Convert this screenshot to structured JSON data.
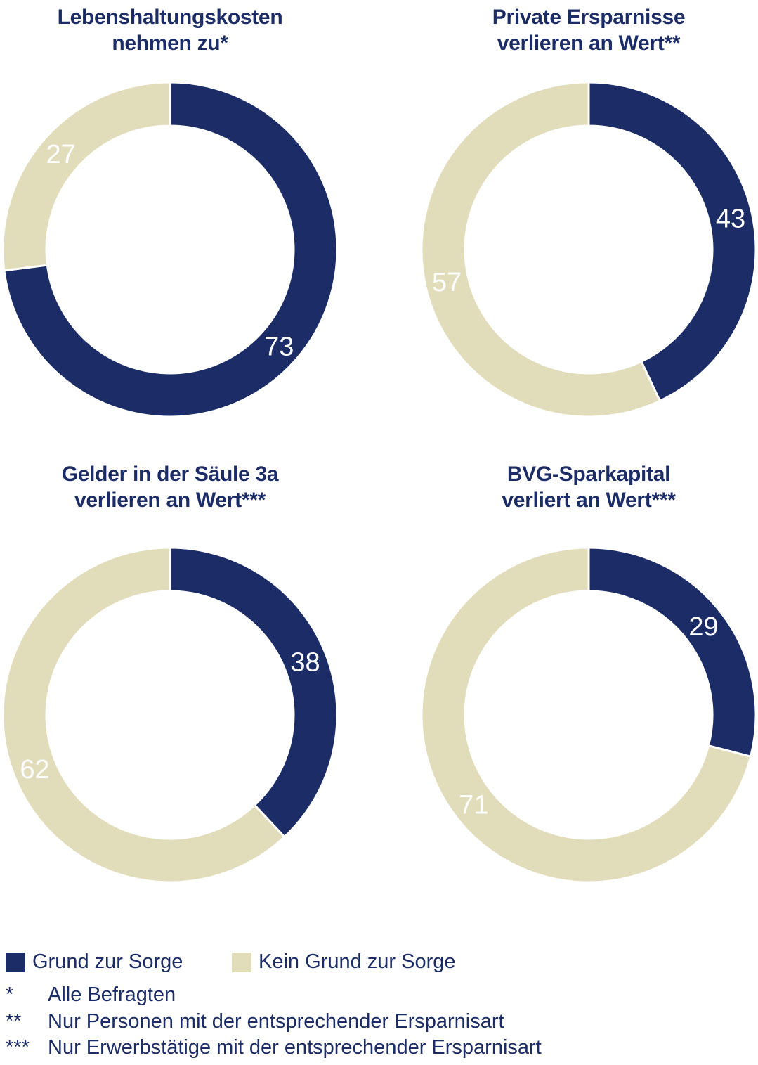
{
  "colors": {
    "navy": "#1b2c66",
    "beige": "#e1dcba",
    "value_label": "#ffffff",
    "background": "#ffffff"
  },
  "chart_data": {
    "type": "pie",
    "variant": "donut",
    "units": "percent",
    "start_angle": "top",
    "direction": "clockwise",
    "legend_position": "bottom-left",
    "legend": [
      {
        "label": "Grund zur Sorge",
        "color_key": "navy"
      },
      {
        "label": "Kein Grund zur Sorge",
        "color_key": "beige"
      }
    ],
    "charts": [
      {
        "title": "Lebenshaltungskosten\nnehmen zu*",
        "values": [
          73,
          27
        ],
        "labels": [
          "73",
          "27"
        ]
      },
      {
        "title": "Private Ersparnisse\nverlieren an Wert**",
        "values": [
          43,
          57
        ],
        "labels": [
          "43",
          "57"
        ]
      },
      {
        "title": "Gelder in der Säule 3a\nverlieren an Wert***",
        "values": [
          38,
          62
        ],
        "labels": [
          "38",
          "62"
        ]
      },
      {
        "title": "BVG-Sparkapital\nverliert an Wert***",
        "values": [
          29,
          71
        ],
        "labels": [
          "29",
          "71"
        ]
      }
    ]
  },
  "footnotes": [
    {
      "marker": "*",
      "text": "Alle Befragten"
    },
    {
      "marker": "**",
      "text": "Nur Personen mit der entsprechender Ersparnisart"
    },
    {
      "marker": "***",
      "text": "Nur Erwerbstätige mit der entsprechender Ersparnisart"
    }
  ]
}
